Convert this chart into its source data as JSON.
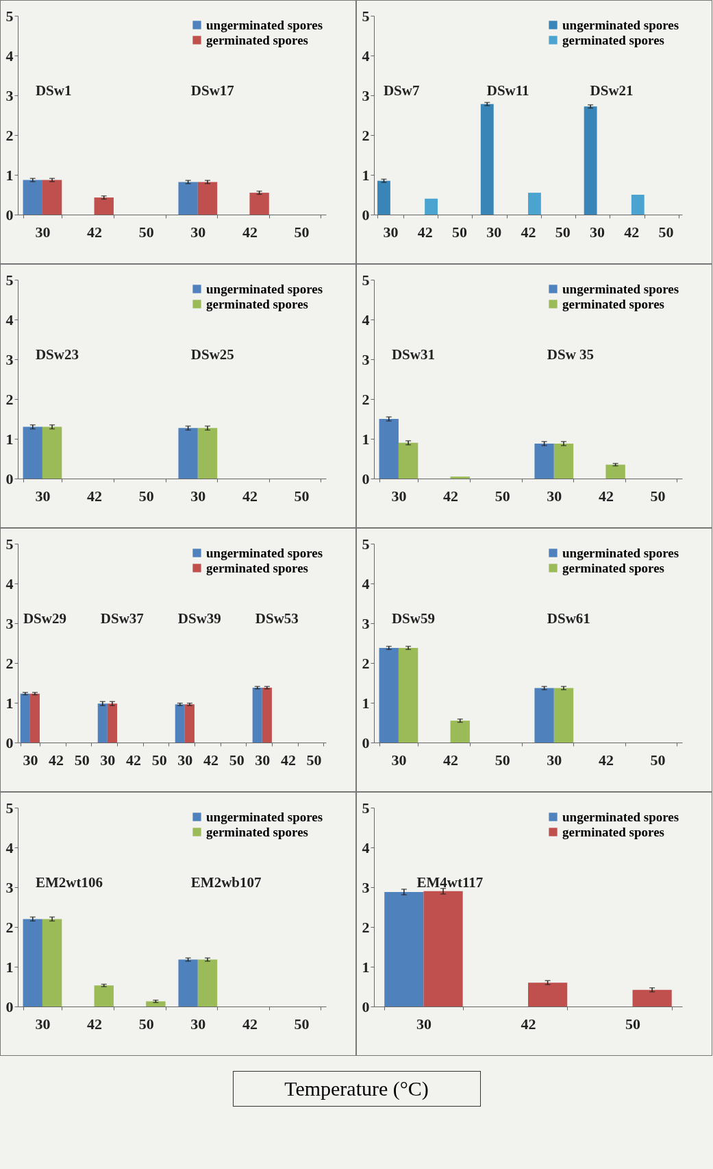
{
  "chart_data": [
    {
      "type": "bar",
      "categories": [
        "30",
        "42",
        "50",
        "30",
        "42",
        "50"
      ],
      "annotations": [
        "DSw1",
        "DSw17"
      ],
      "ylim": [
        0,
        5
      ],
      "yticks": [
        0,
        1,
        2,
        3,
        4,
        5
      ],
      "legend": "top right",
      "series": [
        {
          "name": "ungerminated spores",
          "color": "#4f81bd",
          "values": [
            0.87,
            null,
            null,
            0.82,
            null,
            null
          ],
          "errors": [
            0.04,
            null,
            null,
            0.04,
            null,
            null
          ]
        },
        {
          "name": "germinated spores",
          "color": "#c0504d",
          "values": [
            0.87,
            0.43,
            null,
            0.82,
            0.55,
            null
          ],
          "errors": [
            0.04,
            0.04,
            null,
            0.04,
            0.04,
            null
          ]
        }
      ]
    },
    {
      "type": "bar",
      "categories": [
        "30",
        "42",
        "50",
        "30",
        "42",
        "50",
        "30",
        "42",
        "50"
      ],
      "annotations": [
        "DSw7",
        "DSw11",
        "DSw21"
      ],
      "ylim": [
        0,
        5
      ],
      "yticks": [
        0,
        1,
        2,
        3,
        4,
        5
      ],
      "legend": "top right",
      "series": [
        {
          "name": "ungerminated spores",
          "color": "#3a85b8",
          "values": [
            0.85,
            null,
            null,
            2.78,
            null,
            null,
            2.72,
            null,
            null
          ],
          "errors": [
            0.04,
            null,
            null,
            0.04,
            null,
            null,
            0.04,
            null,
            null
          ]
        },
        {
          "name": "germinated spores",
          "color": "#4ba3cf",
          "values": [
            null,
            0.4,
            null,
            null,
            0.55,
            null,
            null,
            0.5,
            null
          ]
        }
      ]
    },
    {
      "type": "bar",
      "categories": [
        "30",
        "42",
        "50",
        "30",
        "42",
        "50"
      ],
      "annotations": [
        "DSw23",
        "DSw25"
      ],
      "ylim": [
        0,
        5
      ],
      "yticks": [
        0,
        1,
        2,
        3,
        4,
        5
      ],
      "legend": "top right",
      "series": [
        {
          "name": "ungerminated spores",
          "color": "#4f81bd",
          "values": [
            1.3,
            null,
            null,
            1.27,
            null,
            null
          ],
          "errors": [
            0.05,
            null,
            null,
            0.05,
            null,
            null
          ]
        },
        {
          "name": "germinated spores",
          "color": "#9bbb59",
          "values": [
            1.3,
            null,
            null,
            1.27,
            null,
            null
          ],
          "errors": [
            0.05,
            null,
            null,
            0.05,
            null,
            null
          ]
        }
      ]
    },
    {
      "type": "bar",
      "categories": [
        "30",
        "42",
        "50",
        "30",
        "42",
        "50"
      ],
      "annotations": [
        "DSw31",
        "DSw 35"
      ],
      "ylim": [
        0,
        5
      ],
      "yticks": [
        0,
        1,
        2,
        3,
        4,
        5
      ],
      "legend": "top right",
      "series": [
        {
          "name": "ungerminated spores",
          "color": "#4f81bd",
          "values": [
            1.5,
            null,
            null,
            0.88,
            null,
            null
          ],
          "errors": [
            0.05,
            null,
            null,
            0.05,
            null,
            null
          ]
        },
        {
          "name": "germinated spores",
          "color": "#9bbb59",
          "values": [
            0.9,
            0.05,
            null,
            0.88,
            0.35,
            null
          ],
          "errors": [
            0.05,
            null,
            null,
            0.05,
            0.03,
            null
          ]
        }
      ]
    },
    {
      "type": "bar",
      "categories": [
        "30",
        "42",
        "50",
        "30",
        "42",
        "50",
        "30",
        "42",
        "50",
        "30",
        "42",
        "50"
      ],
      "annotations": [
        "DSw29",
        "DSw37",
        "DSw39",
        "DSw53"
      ],
      "ylim": [
        0,
        5
      ],
      "yticks": [
        0,
        1,
        2,
        3,
        4,
        5
      ],
      "legend": "top right",
      "series": [
        {
          "name": "ungerminated spores",
          "color": "#4f81bd",
          "values": [
            1.23,
            null,
            null,
            0.98,
            null,
            null,
            0.96,
            null,
            null,
            1.38,
            null,
            null
          ],
          "errors": [
            0.03,
            null,
            null,
            0.05,
            null,
            null,
            0.03,
            null,
            null,
            0.03,
            null,
            null
          ]
        },
        {
          "name": "germinated spores",
          "color": "#c0504d",
          "values": [
            1.23,
            null,
            null,
            0.98,
            null,
            null,
            0.96,
            null,
            null,
            1.38,
            null,
            null
          ],
          "errors": [
            0.03,
            null,
            null,
            0.05,
            null,
            null,
            0.03,
            null,
            null,
            0.03,
            null,
            null
          ]
        }
      ]
    },
    {
      "type": "bar",
      "categories": [
        "30",
        "42",
        "50",
        "30",
        "42",
        "50"
      ],
      "annotations": [
        "DSw59",
        "DSw61"
      ],
      "ylim": [
        0,
        5
      ],
      "yticks": [
        0,
        1,
        2,
        3,
        4,
        5
      ],
      "legend": "top right",
      "series": [
        {
          "name": "ungerminated spores",
          "color": "#4f81bd",
          "values": [
            2.38,
            null,
            null,
            1.37,
            null,
            null
          ],
          "errors": [
            0.04,
            null,
            null,
            0.04,
            null,
            null
          ]
        },
        {
          "name": "germinated spores",
          "color": "#9bbb59",
          "values": [
            2.38,
            0.55,
            null,
            1.37,
            null,
            null
          ],
          "errors": [
            0.04,
            0.04,
            null,
            0.04,
            null,
            null
          ]
        }
      ]
    },
    {
      "type": "bar",
      "categories": [
        "30",
        "42",
        "50",
        "30",
        "42",
        "50"
      ],
      "annotations": [
        "EM2wt106",
        "EM2wb107"
      ],
      "ylim": [
        0,
        5
      ],
      "yticks": [
        0,
        1,
        2,
        3,
        4,
        5
      ],
      "legend": "top right",
      "series": [
        {
          "name": "ungerminated spores",
          "color": "#4f81bd",
          "values": [
            2.2,
            null,
            null,
            1.18,
            null,
            null
          ],
          "errors": [
            0.05,
            null,
            null,
            0.04,
            null,
            null
          ]
        },
        {
          "name": "germinated spores",
          "color": "#9bbb59",
          "values": [
            2.2,
            0.53,
            0.13,
            1.18,
            null,
            null
          ],
          "errors": [
            0.05,
            0.03,
            0.03,
            0.04,
            null,
            null
          ]
        }
      ]
    },
    {
      "type": "bar",
      "categories": [
        "30",
        "42",
        "50"
      ],
      "annotations": [
        "EM4wt117"
      ],
      "xlabel": "Temperature (°C)",
      "ylim": [
        0,
        5
      ],
      "yticks": [
        0,
        1,
        2,
        3,
        4,
        5
      ],
      "legend": "top right",
      "series": [
        {
          "name": "ungerminated spores",
          "color": "#4f81bd",
          "values": [
            2.88,
            null,
            null
          ],
          "errors": [
            0.07,
            null,
            null
          ]
        },
        {
          "name": "germinated spores",
          "color": "#c0504d",
          "values": [
            2.9,
            0.6,
            0.42
          ],
          "errors": [
            0.07,
            0.05,
            0.05
          ]
        }
      ]
    }
  ]
}
